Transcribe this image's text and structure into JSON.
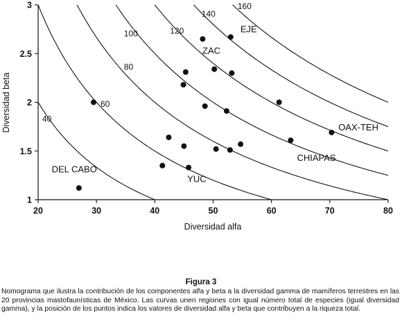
{
  "chart_data": {
    "type": "scatter",
    "xlabel": "Diversidad alfa",
    "ylabel": "Diversidad beta",
    "xlim": [
      20,
      80
    ],
    "ylim": [
      1,
      3
    ],
    "xticks": [
      "20",
      "30",
      "40",
      "50",
      "60",
      "70",
      "80"
    ],
    "yticks": [
      "1",
      "1.5",
      "2",
      "2.5",
      "3"
    ],
    "isolines": [
      {
        "gamma": 40,
        "label": "40"
      },
      {
        "gamma": 60,
        "label": "60"
      },
      {
        "gamma": 80,
        "label": "80"
      },
      {
        "gamma": 100,
        "label": "100"
      },
      {
        "gamma": 120,
        "label": "120"
      },
      {
        "gamma": 140,
        "label": "140"
      },
      {
        "gamma": 160,
        "label": "160"
      }
    ],
    "points": [
      {
        "x": 27,
        "y": 1.12
      },
      {
        "x": 29.5,
        "y": 2.0
      },
      {
        "x": 41.3,
        "y": 1.35
      },
      {
        "x": 42.4,
        "y": 1.64
      },
      {
        "x": 45.0,
        "y": 1.55
      },
      {
        "x": 44.9,
        "y": 2.18
      },
      {
        "x": 45.3,
        "y": 2.31
      },
      {
        "x": 45.8,
        "y": 1.33
      },
      {
        "x": 48.2,
        "y": 2.65
      },
      {
        "x": 48.6,
        "y": 1.96
      },
      {
        "x": 50.2,
        "y": 2.34
      },
      {
        "x": 50.5,
        "y": 1.52
      },
      {
        "x": 52.3,
        "y": 1.91
      },
      {
        "x": 52.9,
        "y": 1.51
      },
      {
        "x": 53.0,
        "y": 2.67
      },
      {
        "x": 53.2,
        "y": 2.3
      },
      {
        "x": 54.7,
        "y": 1.57
      },
      {
        "x": 61.3,
        "y": 2.0
      },
      {
        "x": 63.3,
        "y": 1.61
      },
      {
        "x": 70.3,
        "y": 1.69
      }
    ],
    "region_labels": [
      {
        "text": "DEL CABO",
        "x": 26.2,
        "y": 1.28
      },
      {
        "text": "YUC",
        "x": 47.2,
        "y": 1.18
      },
      {
        "text": "ZAC",
        "x": 49.7,
        "y": 2.5
      },
      {
        "text": "EJE",
        "x": 56.1,
        "y": 2.72
      },
      {
        "text": "CHIAPAS",
        "x": 67.7,
        "y": 1.4
      },
      {
        "text": "OAX-TEH",
        "x": 74.9,
        "y": 1.71
      }
    ]
  },
  "caption": {
    "title": "Figura 3",
    "body": "Nomograma que ilustra la contribución de los componentes alfa y beta a la diversidad gamma de mamíferos terrestres en las 20 provincias mastofaunísticas de México. Las curvas unen regiones con igual número total de especies (igual diversidad gamma), y la posición de los puntos indica los valores de diversidad alfa y beta que contribuyen a la riqueza total."
  }
}
